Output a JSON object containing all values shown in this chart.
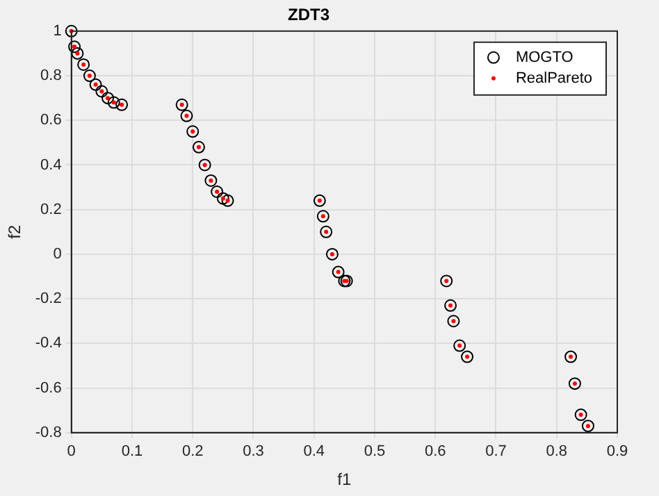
{
  "chart_data": {
    "type": "scatter",
    "title": "ZDT3",
    "xlabel": "f1",
    "ylabel": "f2",
    "xlim": [
      0,
      0.9
    ],
    "xticks": [
      0,
      0.1,
      0.2,
      0.3,
      0.4,
      0.5,
      0.6,
      0.7,
      0.8,
      0.9
    ],
    "ylim": [
      -0.8,
      1
    ],
    "yticks": [
      -0.8,
      -0.6,
      -0.4,
      -0.2,
      0,
      0.2,
      0.4,
      0.6,
      0.8,
      1
    ],
    "grid": true,
    "legend": "top right",
    "marker": "circle",
    "series": [
      {
        "name": "MOGTO",
        "color": "#000000",
        "x": [
          0,
          0.005,
          0.01,
          0.02,
          0.03,
          0.04,
          0.05,
          0.06,
          0.07,
          0.083,
          0.1822,
          0.19,
          0.2,
          0.21,
          0.22,
          0.23,
          0.24,
          0.25,
          0.2577,
          0.4093,
          0.415,
          0.42,
          0.43,
          0.44,
          0.45,
          0.4538,
          0.6183,
          0.625,
          0.63,
          0.64,
          0.6525,
          0.8233,
          0.83,
          0.84,
          0.8518
        ],
        "values": [
          1,
          0.93,
          0.9,
          0.85,
          0.8,
          0.76,
          0.73,
          0.7,
          0.68,
          0.67,
          0.67,
          0.62,
          0.55,
          0.48,
          0.4,
          0.33,
          0.28,
          0.25,
          0.24,
          0.24,
          0.17,
          0.1,
          0,
          -0.08,
          -0.12,
          -0.12,
          -0.12,
          -0.23,
          -0.3,
          -0.41,
          -0.46,
          -0.46,
          -0.58,
          -0.72,
          -0.77
        ]
      },
      {
        "name": "RealPareto",
        "color": "#ff0000",
        "x": [
          0,
          0.005,
          0.01,
          0.02,
          0.03,
          0.04,
          0.05,
          0.06,
          0.07,
          0.083,
          0.1822,
          0.19,
          0.2,
          0.21,
          0.22,
          0.23,
          0.24,
          0.25,
          0.2577,
          0.4093,
          0.415,
          0.42,
          0.43,
          0.44,
          0.45,
          0.4538,
          0.6183,
          0.625,
          0.63,
          0.64,
          0.6525,
          0.8233,
          0.83,
          0.84,
          0.8518
        ],
        "values": [
          1,
          0.93,
          0.9,
          0.85,
          0.8,
          0.76,
          0.73,
          0.7,
          0.68,
          0.67,
          0.67,
          0.62,
          0.55,
          0.48,
          0.4,
          0.33,
          0.28,
          0.25,
          0.24,
          0.24,
          0.17,
          0.1,
          0,
          -0.08,
          -0.12,
          -0.12,
          -0.12,
          -0.23,
          -0.3,
          -0.41,
          -0.46,
          -0.46,
          -0.58,
          -0.72,
          -0.77
        ]
      }
    ]
  }
}
